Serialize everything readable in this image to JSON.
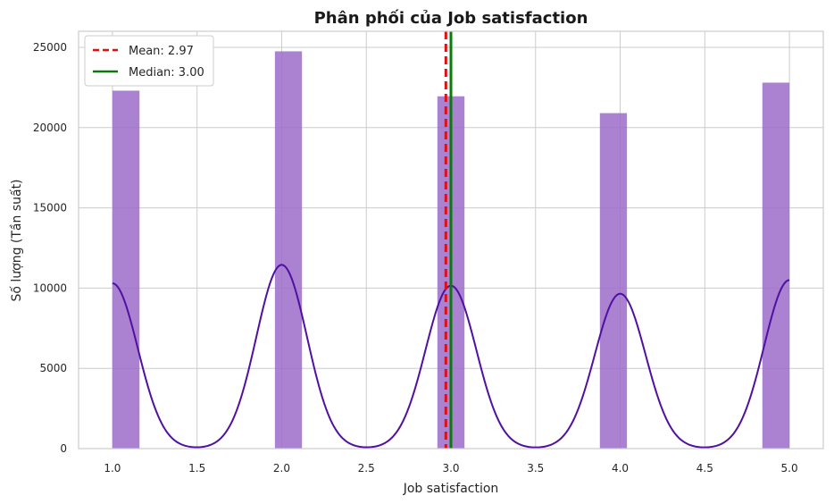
{
  "chart_data": {
    "type": "bar",
    "title": "Phân phối của Job satisfaction",
    "xlabel": "Job satisfaction",
    "ylabel": "Số lượng (Tần suất)",
    "xlim": [
      0.8,
      5.2
    ],
    "ylim": [
      0,
      26000
    ],
    "xticks": [
      1.0,
      1.5,
      2.0,
      2.5,
      3.0,
      3.5,
      4.0,
      4.5,
      5.0
    ],
    "xtick_labels": [
      "1.0",
      "1.5",
      "2.0",
      "2.5",
      "3.0",
      "3.5",
      "4.0",
      "4.5",
      "5.0"
    ],
    "yticks": [
      0,
      5000,
      10000,
      15000,
      20000,
      25000
    ],
    "ytick_labels": [
      "0",
      "5000",
      "10000",
      "15000",
      "20000",
      "25000"
    ],
    "grid": true,
    "bins": [
      {
        "x0": 1.0,
        "x1": 1.16,
        "count": 22300
      },
      {
        "x0": 1.96,
        "x1": 2.12,
        "count": 24750
      },
      {
        "x0": 2.92,
        "x1": 3.08,
        "count": 21950
      },
      {
        "x0": 3.88,
        "x1": 4.04,
        "count": 20900
      },
      {
        "x0": 4.84,
        "x1": 5.0,
        "count": 22800
      }
    ],
    "kde": {
      "peaks": [
        {
          "x": 1.0,
          "y": 10300
        },
        {
          "x": 2.0,
          "y": 11450
        },
        {
          "x": 3.0,
          "y": 10150
        },
        {
          "x": 4.0,
          "y": 9650
        },
        {
          "x": 5.0,
          "y": 10500
        }
      ],
      "sigma": 0.15
    },
    "mean": {
      "value": 2.97,
      "label": "Mean: 2.97"
    },
    "median": {
      "value": 3.0,
      "label": "Median: 3.00"
    },
    "legend_position": "top-left",
    "colors": {
      "bar": "#9b6cc9",
      "kde": "#5010a0",
      "mean": "#e01010",
      "median": "#0a7a0a",
      "grid": "#cccccc"
    }
  }
}
